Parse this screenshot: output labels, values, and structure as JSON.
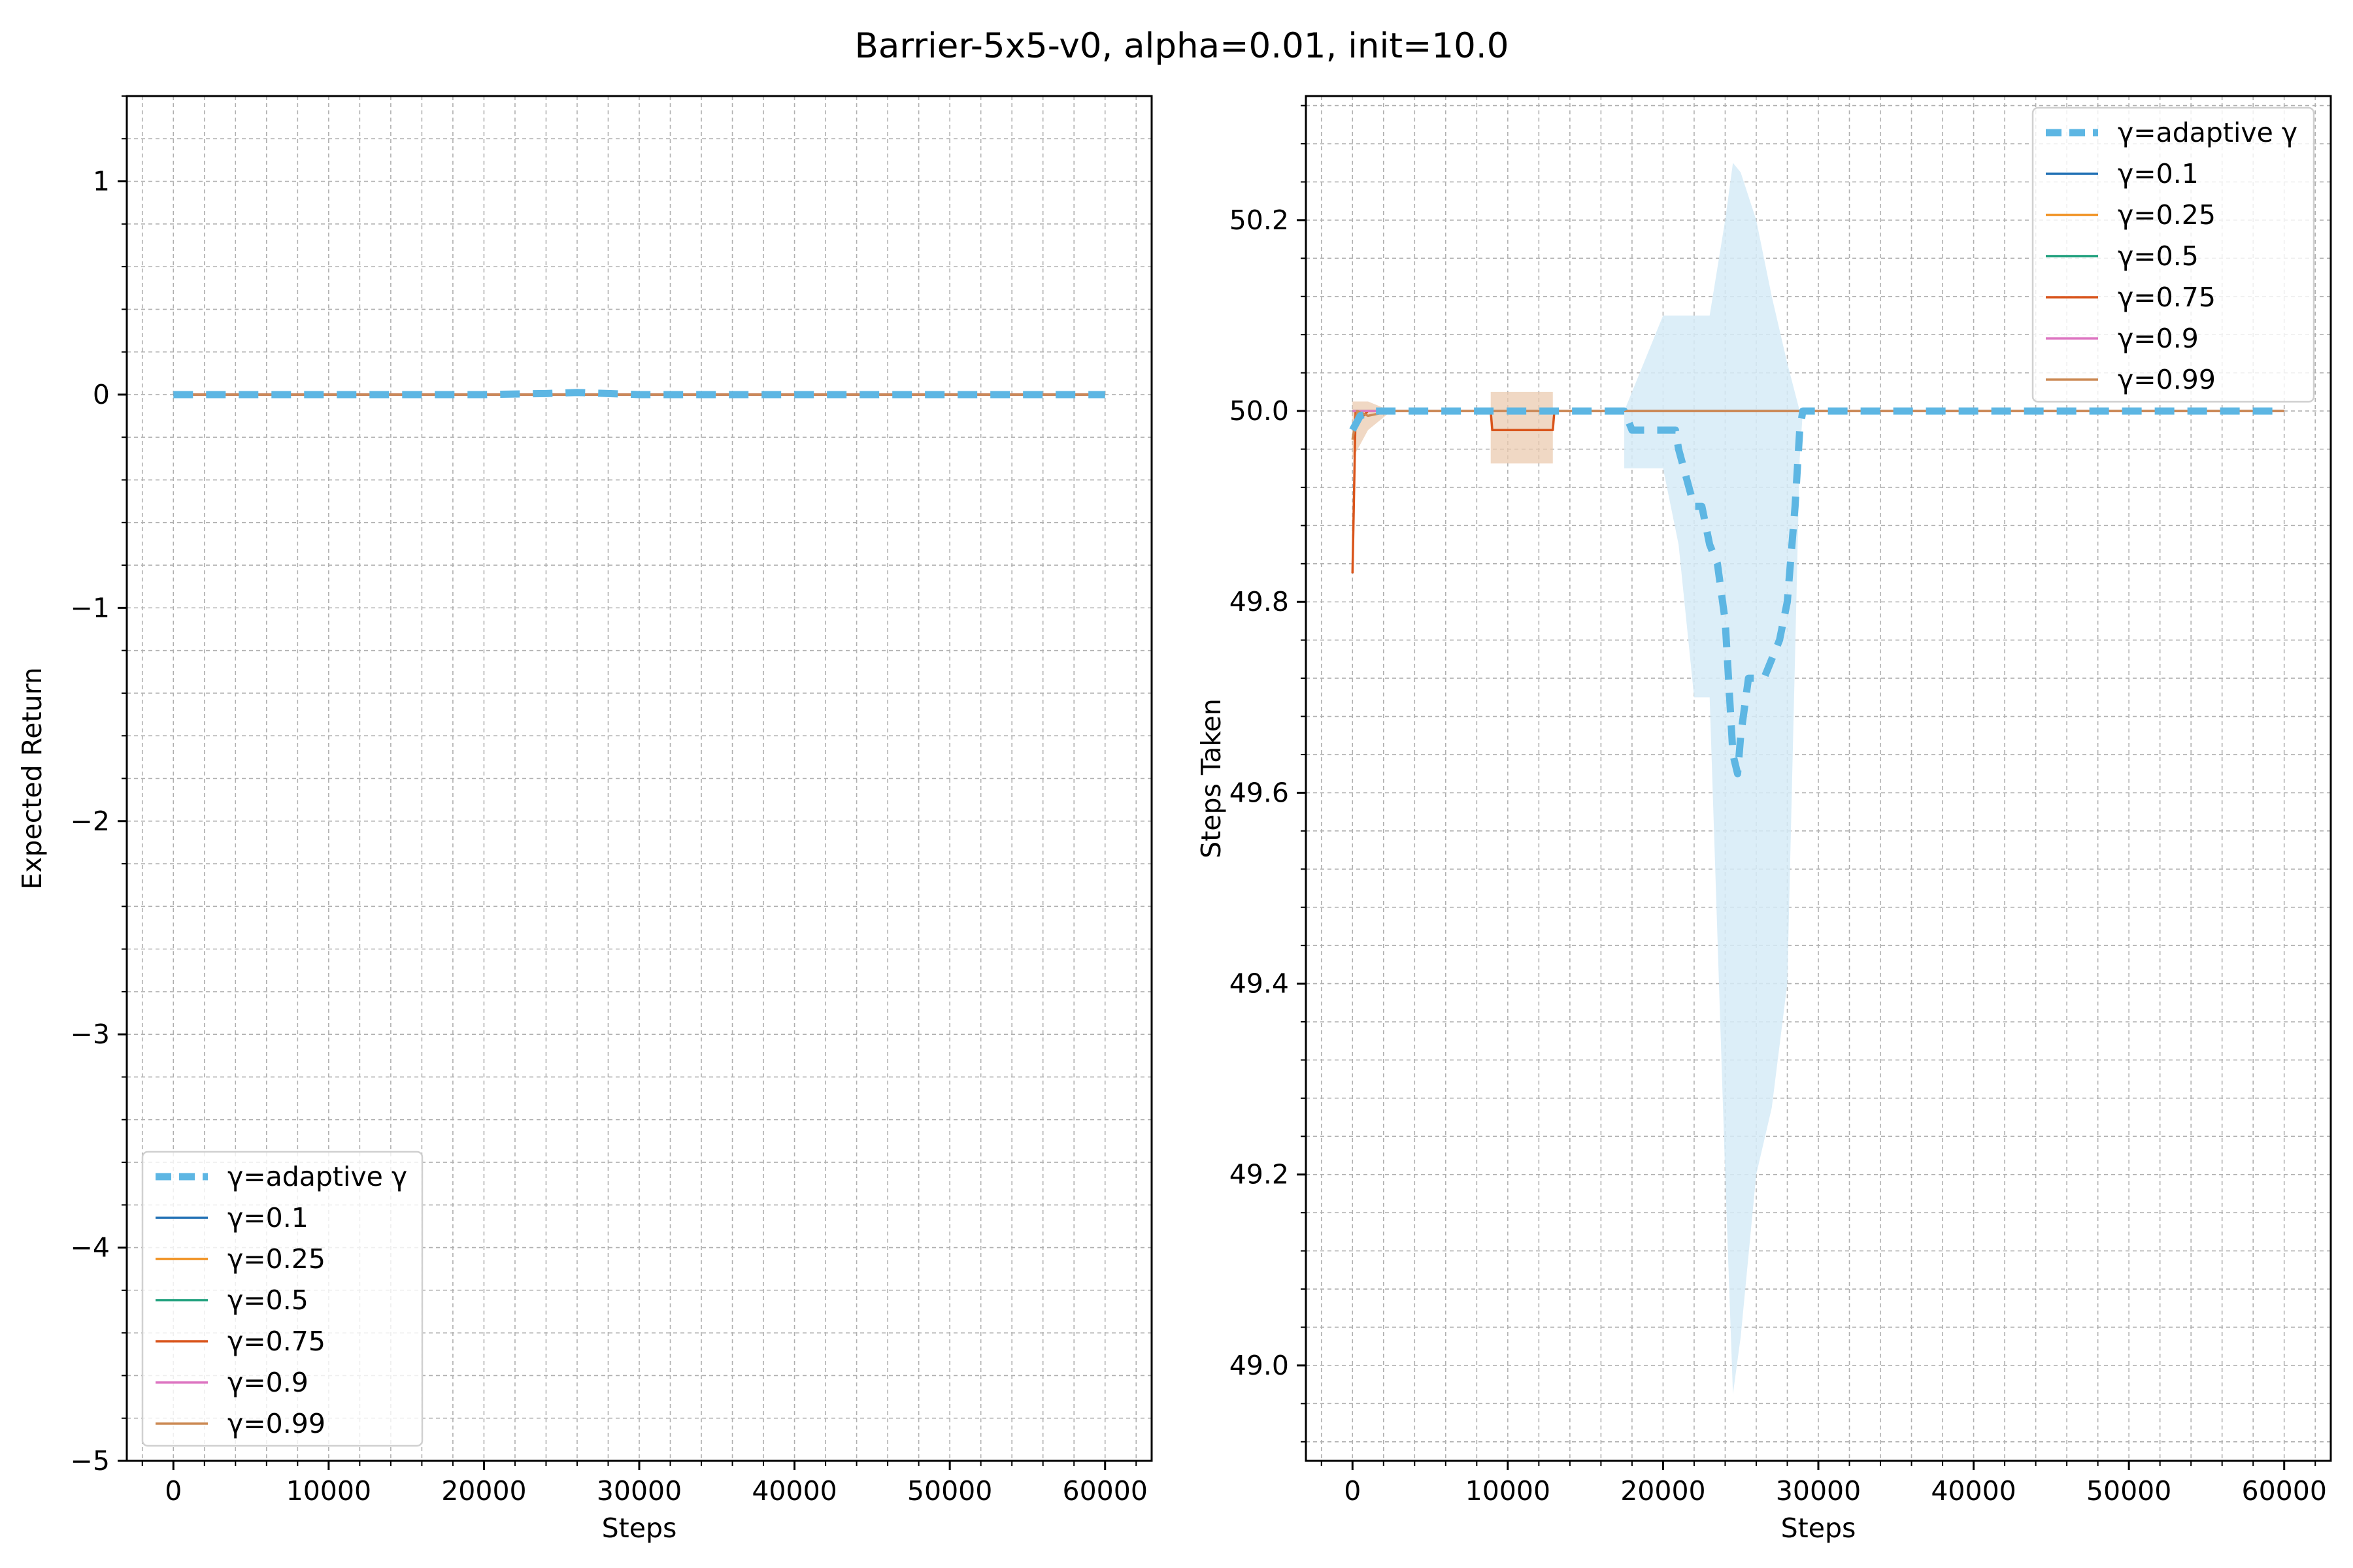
{
  "suptitle": "Barrier-5x5-v0, alpha=0.01, init=10.0",
  "colors": {
    "adaptive": "#5DB6E3",
    "adaptive_band": "#D6EBF7",
    "g01": "#1F6FB4",
    "g025": "#F0901F",
    "g05": "#1A9E7A",
    "g075": "#D9541A",
    "g09": "#DD77C2",
    "g099": "#CC8A55",
    "g099_band": "#EBCBB0",
    "grid": "#B0B0B0"
  },
  "chart_data": [
    {
      "type": "line",
      "title": "",
      "xlabel": "Steps",
      "ylabel": "Expected Return",
      "xlim": [
        -3000,
        63000
      ],
      "ylim": [
        -5,
        1.4
      ],
      "xticks": [
        0,
        10000,
        20000,
        30000,
        40000,
        50000,
        60000
      ],
      "xtick_labels": [
        "0",
        "10000",
        "20000",
        "30000",
        "40000",
        "50000",
        "60000"
      ],
      "yticks": [
        -5,
        -4,
        -3,
        -2,
        -1,
        0,
        1
      ],
      "ytick_labels": [
        "−5",
        "−4",
        "−3",
        "−2",
        "−1",
        "0",
        "1"
      ],
      "grid": true,
      "legend_position": "lower-left",
      "series": [
        {
          "name": "γ=adaptive γ",
          "x": [
            0,
            20000,
            24000,
            26000,
            28000,
            30000,
            60000
          ],
          "y": [
            0,
            0,
            0.005,
            0.01,
            0.005,
            0,
            0
          ]
        },
        {
          "name": "γ=0.1",
          "x": [
            0,
            60000
          ],
          "y": [
            0,
            0
          ]
        },
        {
          "name": "γ=0.25",
          "x": [
            0,
            60000
          ],
          "y": [
            0,
            0
          ]
        },
        {
          "name": "γ=0.5",
          "x": [
            0,
            60000
          ],
          "y": [
            0,
            0
          ]
        },
        {
          "name": "γ=0.75",
          "x": [
            0,
            60000
          ],
          "y": [
            0,
            0
          ]
        },
        {
          "name": "γ=0.9",
          "x": [
            0,
            60000
          ],
          "y": [
            0,
            0
          ]
        },
        {
          "name": "γ=0.99",
          "x": [
            0,
            60000
          ],
          "y": [
            0,
            0
          ]
        }
      ]
    },
    {
      "type": "line",
      "title": "",
      "xlabel": "Steps",
      "ylabel": "Steps Taken",
      "xlim": [
        -3000,
        63000
      ],
      "ylim": [
        48.9,
        50.33
      ],
      "xticks": [
        0,
        10000,
        20000,
        30000,
        40000,
        50000,
        60000
      ],
      "xtick_labels": [
        "0",
        "10000",
        "20000",
        "30000",
        "40000",
        "50000",
        "60000"
      ],
      "yticks": [
        49.0,
        49.2,
        49.4,
        49.6,
        49.8,
        50.0,
        50.2
      ],
      "ytick_labels": [
        "49.0",
        "49.2",
        "49.4",
        "49.6",
        "49.8",
        "50.0",
        "50.2"
      ],
      "grid": true,
      "legend_position": "top-right",
      "series": [
        {
          "name": "γ=adaptive γ",
          "x": [
            0,
            500,
            1500,
            3000,
            17500,
            18000,
            20800,
            21000,
            21500,
            22000,
            22500,
            23000,
            23500,
            24000,
            24500,
            24800,
            25000,
            25500,
            26000,
            26500,
            27000,
            27500,
            28000,
            28500,
            28800,
            29000,
            60000
          ],
          "y": [
            49.98,
            49.995,
            50.0,
            50.0,
            50.0,
            49.98,
            49.98,
            49.96,
            49.93,
            49.9,
            49.9,
            49.86,
            49.84,
            49.78,
            49.64,
            49.62,
            49.66,
            49.72,
            49.72,
            49.72,
            49.74,
            49.76,
            49.8,
            49.9,
            49.98,
            50.0,
            50.0
          ],
          "band_x": [
            17500,
            20000,
            21000,
            22000,
            23000,
            24000,
            24500,
            25000,
            26000,
            27000,
            28000,
            28800,
            29000
          ],
          "band_lower": [
            49.94,
            49.94,
            49.86,
            49.7,
            49.7,
            49.2,
            48.97,
            49.03,
            49.2,
            49.27,
            49.4,
            49.95,
            50.0
          ],
          "band_upper": [
            50.0,
            50.1,
            50.1,
            50.1,
            50.1,
            50.2,
            50.26,
            50.25,
            50.2,
            50.12,
            50.05,
            50.0,
            50.0
          ]
        },
        {
          "name": "γ=0.1",
          "x": [
            0,
            60000
          ],
          "y": [
            50.0,
            50.0
          ]
        },
        {
          "name": "γ=0.25",
          "x": [
            0,
            60000
          ],
          "y": [
            50.0,
            50.0
          ]
        },
        {
          "name": "γ=0.5",
          "x": [
            0,
            60000
          ],
          "y": [
            50.0,
            50.0
          ]
        },
        {
          "name": "γ=0.75",
          "x": [
            0,
            200,
            400,
            1000,
            2000,
            8900,
            9000,
            12900,
            13000,
            60000
          ],
          "y": [
            49.83,
            50.0,
            49.99,
            50.0,
            50.0,
            50.0,
            49.98,
            49.98,
            50.0,
            50.0
          ],
          "band_x": [
            8900,
            12900
          ],
          "band_lower": [
            49.945,
            49.945
          ],
          "band_upper": [
            50.02,
            50.02
          ]
        },
        {
          "name": "γ=0.9",
          "x": [
            0,
            60000
          ],
          "y": [
            50.0,
            50.0
          ]
        },
        {
          "name": "γ=0.99",
          "x": [
            0,
            300,
            1000,
            2500,
            60000
          ],
          "y": [
            49.97,
            50.0,
            49.995,
            50.0,
            50.0
          ],
          "band_x": [
            0,
            1000,
            2500
          ],
          "band_lower": [
            49.95,
            49.98,
            50.0
          ],
          "band_upper": [
            50.01,
            50.01,
            50.0
          ]
        }
      ]
    }
  ]
}
